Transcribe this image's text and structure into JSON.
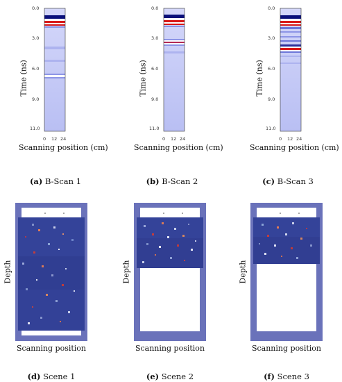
{
  "bscans": [
    {
      "ylabel": "Time (ns)",
      "xlabel": "Scanning position (cm)",
      "yticks": [
        "0.0",
        "3.0",
        "6.0",
        "9.0",
        "11.0"
      ],
      "xticks": [
        "0",
        "12",
        "24"
      ],
      "caption_letter": "(a)",
      "caption_text": "B-Scan 1"
    },
    {
      "ylabel": "Time (ns)",
      "xlabel": "Scanning position (cm)",
      "yticks": [
        "0.0",
        "3.0",
        "6.0",
        "9.0",
        "11.0"
      ],
      "xticks": [
        "0",
        "12",
        "24"
      ],
      "caption_letter": "(b)",
      "caption_text": "B-Scan 2"
    },
    {
      "ylabel": "Time (ns)",
      "xlabel": "Scanning position (cm)",
      "yticks": [
        "0.0",
        "3.0",
        "6.0",
        "9.0",
        "11.0"
      ],
      "xticks": [
        "0",
        "12",
        "24"
      ],
      "caption_letter": "(c)",
      "caption_text": "B-Scan 3"
    }
  ],
  "scenes": [
    {
      "ylabel": "Depth",
      "xlabel": "Scanning position",
      "caption_letter": "(d)",
      "caption_text": "Scene 1"
    },
    {
      "ylabel": "Depth",
      "xlabel": "Scanning position",
      "caption_letter": "(e)",
      "caption_text": "Scene 2"
    },
    {
      "ylabel": "Depth",
      "xlabel": "Scanning position",
      "caption_letter": "(f)",
      "caption_text": "Scene 3"
    }
  ],
  "colors": {
    "scan_bg": "#c9cdf7",
    "scan_dark": "#0a0f7a",
    "scan_red": "#d81818",
    "scene_frame": "#6a72ba",
    "scene_soil": "#2e3b94"
  }
}
